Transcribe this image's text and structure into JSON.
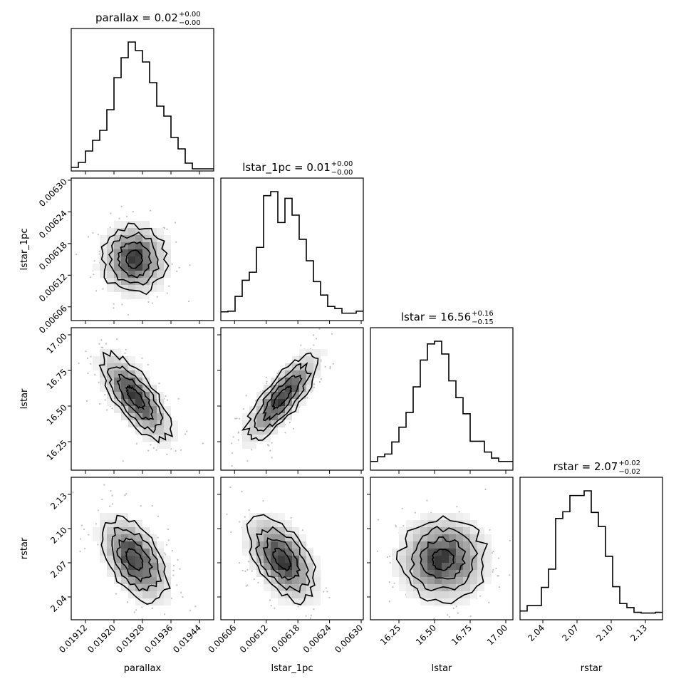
{
  "chart_data": {
    "type": "corner",
    "parameters": [
      "parallax",
      "lstar_1pc",
      "lstar",
      "rstar"
    ],
    "axis_labels": [
      "parallax",
      "lstar_1pc",
      "lstar",
      "rstar"
    ],
    "titles": [
      {
        "name": "parallax",
        "value": "0.02",
        "plus": "+0.00",
        "minus": "−0.00"
      },
      {
        "name": "lstar_1pc",
        "value": "0.01",
        "plus": "+0.00",
        "minus": "−0.00"
      },
      {
        "name": "lstar",
        "value": "16.56",
        "plus": "+0.16",
        "minus": "−0.15"
      },
      {
        "name": "rstar",
        "value": "2.07",
        "plus": "+0.02",
        "minus": "−0.02"
      }
    ],
    "ranges": [
      [
        0.01908,
        0.01948
      ],
      [
        0.006034,
        0.006304
      ],
      [
        16.05,
        17.05
      ],
      [
        2.02,
        2.145
      ]
    ],
    "ticks": [
      {
        "values": [
          0.01912,
          0.0192,
          0.01928,
          0.01936,
          0.01944
        ],
        "labels": [
          "0.01912",
          "0.01920",
          "0.01928",
          "0.01936",
          "0.01944"
        ]
      },
      {
        "values": [
          0.00606,
          0.00612,
          0.00618,
          0.00624,
          0.0063
        ],
        "labels": [
          "0.00606",
          "0.00612",
          "0.00618",
          "0.00624",
          "0.00630"
        ]
      },
      {
        "values": [
          16.25,
          16.5,
          16.75,
          17.0
        ],
        "labels": [
          "16.25",
          "16.50",
          "16.75",
          "17.00"
        ]
      },
      {
        "values": [
          2.04,
          2.07,
          2.1,
          2.13
        ],
        "labels": [
          "2.04",
          "2.07",
          "2.10",
          "2.13"
        ]
      }
    ],
    "histograms": [
      {
        "parameter": "parallax",
        "bins": 20,
        "counts": [
          5,
          12,
          28,
          43,
          57,
          86,
          131,
          159,
          181,
          169,
          153,
          124,
          91,
          77,
          47,
          31,
          11,
          3,
          3,
          3
        ]
      },
      {
        "parameter": "lstar_1pc",
        "bins": 20,
        "counts": [
          13,
          14,
          36,
          60,
          72,
          109,
          186,
          192,
          146,
          182,
          157,
          121,
          89,
          58,
          38,
          21,
          18,
          11,
          11,
          14
        ]
      },
      {
        "parameter": "lstar",
        "bins": 20,
        "counts": [
          13,
          20,
          24,
          42,
          64,
          86,
          124,
          164,
          188,
          192,
          173,
          133,
          108,
          84,
          43,
          43,
          27,
          18,
          13,
          13
        ]
      },
      {
        "parameter": "rstar",
        "bins": 20,
        "counts": [
          13,
          21,
          21,
          48,
          75,
          150,
          160,
          184,
          184,
          191,
          159,
          138,
          94,
          49,
          24,
          18,
          11,
          10,
          10,
          11
        ]
      }
    ],
    "pairs": [
      {
        "x": "parallax",
        "y": "lstar_1pc",
        "center": [
          0.019257,
          0.00615
        ],
        "sigma": [
          4.5e-05,
          3.2e-05
        ],
        "corr": 0.0
      },
      {
        "x": "parallax",
        "y": "lstar",
        "center": [
          0.01926,
          16.56
        ],
        "sigma": [
          4.8e-05,
          0.15
        ],
        "corr": -0.72
      },
      {
        "x": "lstar_1pc",
        "y": "lstar",
        "center": [
          0.00615,
          16.56
        ],
        "sigma": [
          3.4e-05,
          0.15
        ],
        "corr": 0.8
      },
      {
        "x": "parallax",
        "y": "rstar",
        "center": [
          0.019258,
          2.073
        ],
        "sigma": [
          4.6e-05,
          0.018
        ],
        "corr": -0.5
      },
      {
        "x": "lstar_1pc",
        "y": "rstar",
        "center": [
          0.00615,
          2.073
        ],
        "sigma": [
          3.2e-05,
          0.018
        ],
        "corr": -0.5
      },
      {
        "x": "lstar",
        "y": "rstar",
        "center": [
          16.56,
          2.073
        ],
        "sigma": [
          0.15,
          0.018
        ],
        "corr": 0.0
      }
    ],
    "contour_levels_sigma": [
      0.5,
      1.0,
      1.5,
      2.0
    ],
    "colors": {
      "line": "#000000",
      "density_max": "#000000",
      "density_min": "#ffffff",
      "points": "#bfbfbf"
    }
  }
}
